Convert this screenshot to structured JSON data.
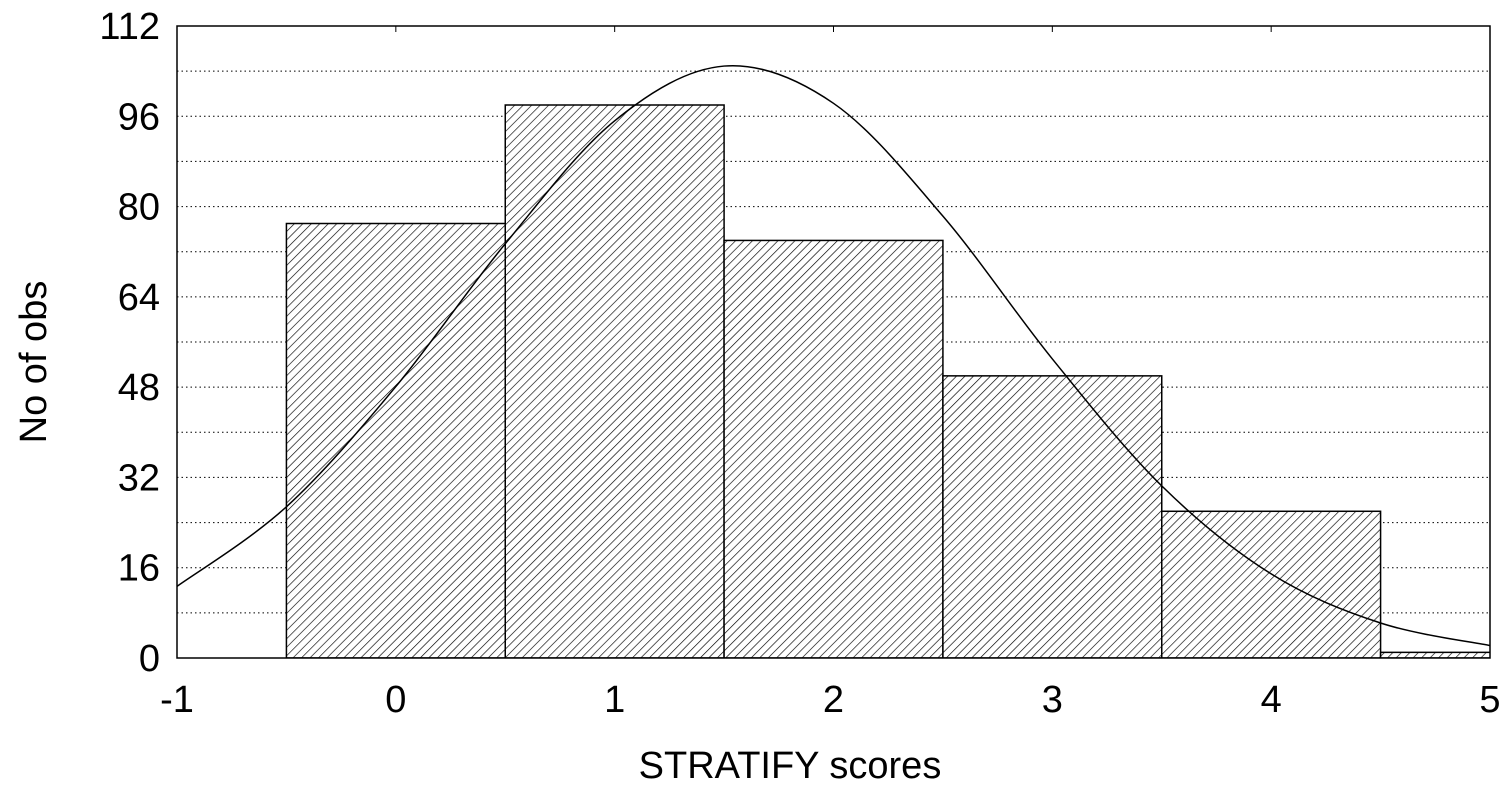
{
  "chart_data": {
    "type": "histogram",
    "xlabel": "STRATIFY scores",
    "ylabel": "No of obs",
    "bins": [
      -0.5,
      0.5,
      1.5,
      2.5,
      3.5,
      4.5,
      5.5
    ],
    "values": [
      77,
      98,
      74,
      50,
      26,
      1
    ],
    "hatch": true,
    "color": "#000000",
    "xlim": [
      -1,
      5
    ],
    "xticks": [
      -1,
      0,
      1,
      2,
      3,
      4,
      5
    ],
    "ylim": [
      0,
      112
    ],
    "yticks": [
      0,
      16,
      32,
      48,
      64,
      80,
      96,
      112
    ],
    "y_minor_ticks": [
      8,
      24,
      40,
      56,
      72,
      88,
      104
    ],
    "grid": true,
    "curve": {
      "x": [
        -1,
        -0.5,
        0,
        0.5,
        1,
        1.5,
        2,
        2.5,
        3,
        3.5,
        4,
        4.5,
        5
      ],
      "values": [
        12.7,
        26.8,
        48.1,
        73.4,
        95.2,
        104.9,
        98.3,
        78.3,
        53.0,
        30.5,
        14.9,
        6.2,
        2.2
      ]
    }
  }
}
